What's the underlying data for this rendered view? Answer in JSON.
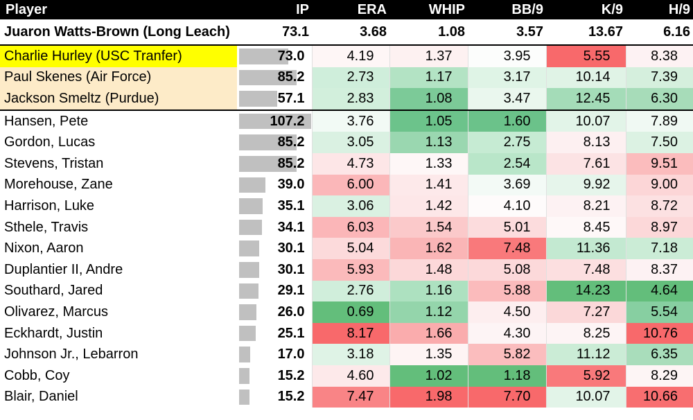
{
  "header": {
    "player": "Player",
    "ip": "IP",
    "era": "ERA",
    "whip": "WHIP",
    "bb9": "BB/9",
    "k9": "K/9",
    "h9": "H/9"
  },
  "summary": {
    "name": "Juaron Watts-Brown (Long Leach)",
    "ip": "73.1",
    "era": "3.68",
    "whip": "1.08",
    "bb9": "3.57",
    "k9": "13.67",
    "h9": "6.16"
  },
  "rows": [
    {
      "name": "Charlie Hurley (USC Tranfer)",
      "highlight": "yellow",
      "ip": "73.0",
      "ipv": 73.0,
      "era": "4.19",
      "era_c": "#fef6f6",
      "whip": "1.37",
      "whip_c": "#fdf1f1",
      "bb9": "3.95",
      "bb9_c": "#fcfdfc",
      "k9": "5.55",
      "k9_c": "#f8696b",
      "h9": "8.38",
      "h9_c": "#fdf2f3"
    },
    {
      "name": "Paul Skenes (Air Force)",
      "highlight": "tan",
      "ip": "85.2",
      "ipv": 85.2,
      "era": "2.73",
      "era_c": "#cfeedb",
      "whip": "1.17",
      "whip_c": "#b3e3c4",
      "bb9": "3.17",
      "bb9_c": "#dff4e6",
      "k9": "10.14",
      "k9_c": "#e0f3e6",
      "h9": "7.39",
      "h9_c": "#d5efdd"
    },
    {
      "name": "Jackson Smeltz (Purdue)",
      "highlight": "tan",
      "ip": "57.1",
      "ipv": 57.1,
      "era": "2.83",
      "era_c": "#d2efdc",
      "whip": "1.08",
      "whip_c": "#7cca98",
      "bb9": "3.47",
      "bb9_c": "#eaf7ee",
      "k9": "12.45",
      "k9_c": "#a4dcb8",
      "h9": "6.30",
      "h9_c": "#a7dcb9"
    },
    {
      "name": "Hansen, Pete",
      "highlight": "none",
      "ip": "107.2",
      "ipv": 107.2,
      "era": "3.76",
      "era_c": "#f2faf5",
      "whip": "1.05",
      "whip_c": "#6cc38b",
      "bb9": "1.60",
      "bb9_c": "#6bc28a",
      "k9": "10.07",
      "k9_c": "#e2f4e8",
      "h9": "7.89",
      "h9_c": "#f0f9f3"
    },
    {
      "name": "Gordon, Lucas",
      "highlight": "none",
      "ip": "85.2",
      "ipv": 85.2,
      "era": "3.05",
      "era_c": "#daf1e2",
      "whip": "1.13",
      "whip_c": "#9ad7b0",
      "bb9": "2.75",
      "bb9_c": "#c6ebd3",
      "k9": "8.13",
      "k9_c": "#fdf0f1",
      "h9": "7.50",
      "h9_c": "#dcf2e3"
    },
    {
      "name": "Stevens, Tristan",
      "highlight": "none",
      "ip": "85.2",
      "ipv": 85.2,
      "era": "4.73",
      "era_c": "#fde6e7",
      "whip": "1.33",
      "whip_c": "#fef7f7",
      "bb9": "2.54",
      "bb9_c": "#b9e6c9",
      "k9": "7.61",
      "k9_c": "#fce3e4",
      "h9": "9.51",
      "h9_c": "#fbbcbd"
    },
    {
      "name": "Morehouse, Zane",
      "highlight": "none",
      "ip": "39.0",
      "ipv": 39.0,
      "era": "6.00",
      "era_c": "#fbb7b9",
      "whip": "1.41",
      "whip_c": "#fde9ea",
      "bb9": "3.69",
      "bb9_c": "#f3faf6",
      "k9": "9.92",
      "k9_c": "#e6f5eb",
      "h9": "9.00",
      "h9_c": "#fcd6d7"
    },
    {
      "name": "Harrison, Luke",
      "highlight": "none",
      "ip": "35.1",
      "ipv": 35.1,
      "era": "3.06",
      "era_c": "#daf1e2",
      "whip": "1.42",
      "whip_c": "#fde7e8",
      "bb9": "4.10",
      "bb9_c": "#fefbfb",
      "k9": "8.21",
      "k9_c": "#fdf2f3",
      "h9": "8.72",
      "h9_c": "#fce1e2"
    },
    {
      "name": "Sthele, Travis",
      "highlight": "none",
      "ip": "34.1",
      "ipv": 34.1,
      "era": "6.03",
      "era_c": "#fbb6b8",
      "whip": "1.54",
      "whip_c": "#fbc9ca",
      "bb9": "5.01",
      "bb9_c": "#fcdcdd",
      "k9": "8.45",
      "k9_c": "#fef8f8",
      "h9": "8.97",
      "h9_c": "#fcd8d9"
    },
    {
      "name": "Nixon, Aaron",
      "highlight": "none",
      "ip": "30.1",
      "ipv": 30.1,
      "era": "5.04",
      "era_c": "#fcdadb",
      "whip": "1.62",
      "whip_c": "#fab5b6",
      "bb9": "7.48",
      "bb9_c": "#f9797b",
      "k9": "11.36",
      "k9_c": "#c3e9d1",
      "h9": "7.18",
      "h9_c": "#cbecd6"
    },
    {
      "name": "Duplantier II, Andre",
      "highlight": "none",
      "ip": "30.1",
      "ipv": 30.1,
      "era": "5.93",
      "era_c": "#fbbabb",
      "whip": "1.48",
      "whip_c": "#fcd8d9",
      "bb9": "5.08",
      "bb9_c": "#fcd9da",
      "k9": "7.48",
      "k9_c": "#fcdfe0",
      "h9": "8.37",
      "h9_c": "#fdf2f3"
    },
    {
      "name": "Southard, Jared",
      "highlight": "none",
      "ip": "29.1",
      "ipv": 29.1,
      "era": "2.76",
      "era_c": "#d0eedb",
      "whip": "1.16",
      "whip_c": "#ade1c0",
      "bb9": "5.88",
      "bb9_c": "#fbbbbc",
      "k9": "14.23",
      "k9_c": "#63be7b",
      "h9": "4.64",
      "h9_c": "#63be7b"
    },
    {
      "name": "Olivarez, Marcus",
      "highlight": "none",
      "ip": "26.0",
      "ipv": 26.0,
      "era": "0.69",
      "era_c": "#63be7b",
      "whip": "1.12",
      "whip_c": "#94d5ab",
      "bb9": "4.50",
      "bb9_c": "#fdeeef",
      "k9": "7.27",
      "k9_c": "#fbd8d9",
      "h9": "5.54",
      "h9_c": "#87cfa1"
    },
    {
      "name": "Eckhardt, Justin",
      "highlight": "none",
      "ip": "25.1",
      "ipv": 25.1,
      "era": "8.17",
      "era_c": "#f8696b",
      "whip": "1.66",
      "whip_c": "#faacad",
      "bb9": "4.30",
      "bb9_c": "#fdf4f5",
      "k9": "8.25",
      "k9_c": "#fdf4f5",
      "h9": "10.76",
      "h9_c": "#f8696b"
    },
    {
      "name": "Johnson Jr., Lebarron",
      "highlight": "none",
      "ip": "17.0",
      "ipv": 17.0,
      "era": "3.18",
      "era_c": "#dff3e6",
      "whip": "1.35",
      "whip_c": "#fef4f4",
      "bb9": "5.82",
      "bb9_c": "#fbbdbe",
      "k9": "11.12",
      "k9_c": "#cbecd6",
      "h9": "6.35",
      "h9_c": "#a9ddbb"
    },
    {
      "name": "Cobb, Coy",
      "highlight": "none",
      "ip": "15.2",
      "ipv": 15.2,
      "era": "4.60",
      "era_c": "#fde9ea",
      "whip": "1.02",
      "whip_c": "#63be7b",
      "bb9": "1.18",
      "bb9_c": "#63be7b",
      "k9": "5.92",
      "k9_c": "#f9797b",
      "h9": "8.29",
      "h9_c": "#fdf5f5"
    },
    {
      "name": "Blair, Daniel",
      "highlight": "none",
      "ip": "15.2",
      "ipv": 15.2,
      "era": "7.47",
      "era_c": "#f98486",
      "whip": "1.98",
      "whip_c": "#f8696b",
      "bb9": "7.70",
      "bb9_c": "#f8696b",
      "k9": "10.07",
      "k9_c": "#e2f4e8",
      "h9": "10.66",
      "h9_c": "#f86e70"
    }
  ]
}
